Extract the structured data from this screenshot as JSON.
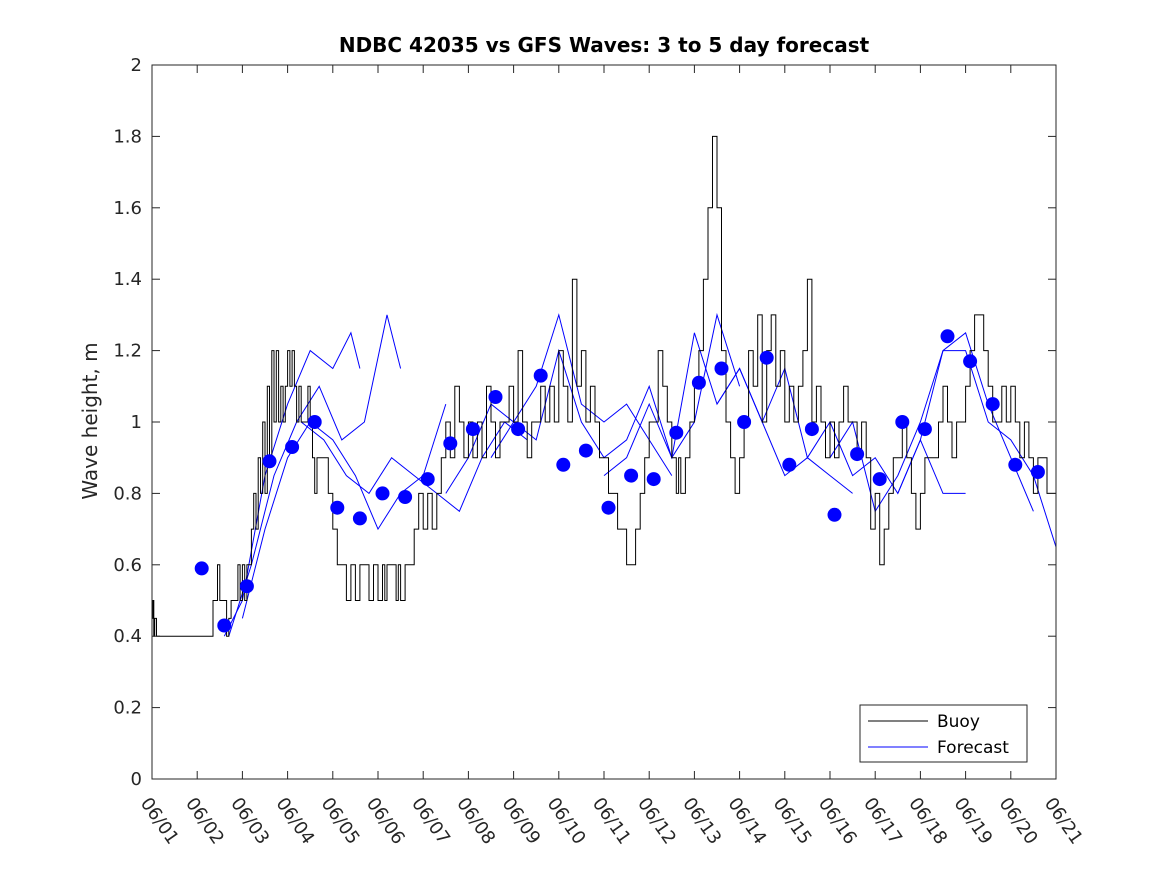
{
  "chart_data": {
    "type": "line",
    "title": "NDBC 42035 vs GFS Waves: 3 to 5 day forecast",
    "xlabel": "",
    "ylabel": "Wave height, m",
    "ylim": [
      0,
      2
    ],
    "xlim": [
      "06/01",
      "06/21"
    ],
    "x_ticks": [
      "06/01",
      "06/02",
      "06/03",
      "06/04",
      "06/05",
      "06/06",
      "06/07",
      "06/08",
      "06/09",
      "06/10",
      "06/11",
      "06/12",
      "06/13",
      "06/14",
      "06/15",
      "06/16",
      "06/17",
      "06/18",
      "06/19",
      "06/20",
      "06/21"
    ],
    "y_ticks": [
      "0",
      "0.2",
      "0.4",
      "0.6",
      "0.8",
      "1",
      "1.2",
      "1.4",
      "1.6",
      "1.8",
      "2"
    ],
    "grid": false,
    "legend": {
      "position": "bottom-right",
      "entries": [
        {
          "label": "Buoy",
          "color": "#000000"
        },
        {
          "label": "Forecast",
          "color": "#0000ff"
        }
      ]
    },
    "colors": {
      "buoy": "#000000",
      "forecast": "#0000ff",
      "marker": "#0000ff"
    },
    "series": [
      {
        "name": "Buoy",
        "color": "#000000",
        "x_days": [
          0,
          0.02,
          0.04,
          0.06,
          0.1,
          0.3,
          0.6,
          0.9,
          1.2,
          1.3,
          1.35,
          1.4,
          1.45,
          1.5,
          1.55,
          1.6,
          1.65,
          1.7,
          1.75,
          1.8,
          1.85,
          1.9,
          1.95,
          2.0,
          2.05,
          2.1,
          2.15,
          2.2,
          2.25,
          2.3,
          2.35,
          2.4,
          2.45,
          2.5,
          2.55,
          2.6,
          2.65,
          2.7,
          2.75,
          2.8,
          2.85,
          2.9,
          2.95,
          3.0,
          3.05,
          3.1,
          3.15,
          3.2,
          3.25,
          3.3,
          3.35,
          3.4,
          3.45,
          3.5,
          3.55,
          3.6,
          3.65,
          3.7,
          3.75,
          3.8,
          3.85,
          3.9,
          4.0,
          4.1,
          4.2,
          4.3,
          4.4,
          4.5,
          4.6,
          4.7,
          4.8,
          4.9,
          5.0,
          5.1,
          5.15,
          5.2,
          5.3,
          5.4,
          5.45,
          5.5,
          5.6,
          5.7,
          5.8,
          5.9,
          6.0,
          6.1,
          6.2,
          6.3,
          6.4,
          6.5,
          6.6,
          6.7,
          6.8,
          6.9,
          7.0,
          7.1,
          7.2,
          7.3,
          7.4,
          7.5,
          7.6,
          7.7,
          7.8,
          7.9,
          8.0,
          8.1,
          8.2,
          8.3,
          8.4,
          8.5,
          8.6,
          8.7,
          8.8,
          8.9,
          9.0,
          9.1,
          9.2,
          9.3,
          9.4,
          9.5,
          9.6,
          9.7,
          9.8,
          9.9,
          10.0,
          10.1,
          10.2,
          10.3,
          10.4,
          10.5,
          10.6,
          10.7,
          10.8,
          10.9,
          11.0,
          11.1,
          11.2,
          11.3,
          11.4,
          11.5,
          11.55,
          11.6,
          11.65,
          11.7,
          11.75,
          11.8,
          11.9,
          12.0,
          12.1,
          12.2,
          12.3,
          12.4,
          12.5,
          12.6,
          12.7,
          12.8,
          12.9,
          13.0,
          13.1,
          13.2,
          13.3,
          13.4,
          13.5,
          13.6,
          13.7,
          13.8,
          13.9,
          14.0,
          14.1,
          14.2,
          14.3,
          14.4,
          14.5,
          14.6,
          14.7,
          14.8,
          14.9,
          15.0,
          15.1,
          15.2,
          15.3,
          15.4,
          15.5,
          15.6,
          15.7,
          15.8,
          15.9,
          16.0,
          16.1,
          16.2,
          16.3,
          16.4,
          16.5,
          16.6,
          16.7,
          16.8,
          16.9,
          17.0,
          17.1,
          17.2,
          17.3,
          17.4,
          17.5,
          17.6,
          17.7,
          17.8,
          17.9,
          18.0,
          18.1,
          18.2,
          18.3,
          18.4,
          18.5,
          18.6,
          18.7,
          18.8,
          18.9,
          19.0,
          19.1,
          19.2,
          19.3,
          19.4,
          19.5,
          19.6,
          19.7,
          19.8,
          19.9,
          20.0
        ],
        "values": [
          0.45,
          0.5,
          0.4,
          0.45,
          0.4,
          0.4,
          0.4,
          0.4,
          0.4,
          0.4,
          0.5,
          0.5,
          0.6,
          0.5,
          0.5,
          0.5,
          0.4,
          0.45,
          0.5,
          0.5,
          0.5,
          0.6,
          0.5,
          0.6,
          0.5,
          0.6,
          0.6,
          0.7,
          0.8,
          0.7,
          0.9,
          0.8,
          1.0,
          0.8,
          1.1,
          0.9,
          1.2,
          1.0,
          1.2,
          1.0,
          1.1,
          1.0,
          1.1,
          1.2,
          1.1,
          1.2,
          1.1,
          1.0,
          1.1,
          1.0,
          1.0,
          1.0,
          1.1,
          1.0,
          0.9,
          0.8,
          0.9,
          0.9,
          0.9,
          0.9,
          0.9,
          0.8,
          0.7,
          0.6,
          0.6,
          0.5,
          0.6,
          0.5,
          0.6,
          0.6,
          0.5,
          0.6,
          0.5,
          0.6,
          0.5,
          0.6,
          0.6,
          0.5,
          0.6,
          0.5,
          0.6,
          0.6,
          0.7,
          0.8,
          0.7,
          0.8,
          0.7,
          0.8,
          0.9,
          1.0,
          0.9,
          1.1,
          1.0,
          0.9,
          1.0,
          0.9,
          1.0,
          0.9,
          1.1,
          1.0,
          0.9,
          1.0,
          1.0,
          1.1,
          1.0,
          1.2,
          1.0,
          0.9,
          1.0,
          1.0,
          1.1,
          1.0,
          1.1,
          1.0,
          1.2,
          1.1,
          1.0,
          1.4,
          1.1,
          1.2,
          1.0,
          1.1,
          1.0,
          0.9,
          0.9,
          0.8,
          0.8,
          0.7,
          0.7,
          0.6,
          0.6,
          0.7,
          0.8,
          0.9,
          1.0,
          1.0,
          1.2,
          1.1,
          1.0,
          0.9,
          0.9,
          0.8,
          0.9,
          0.8,
          0.8,
          0.9,
          1.0,
          1.1,
          1.2,
          1.4,
          1.6,
          1.8,
          1.6,
          1.2,
          1.0,
          0.9,
          0.8,
          0.9,
          1.0,
          1.2,
          1.1,
          1.3,
          1.0,
          1.2,
          1.3,
          1.1,
          1.2,
          1.0,
          1.1,
          1.0,
          1.1,
          1.2,
          1.4,
          1.0,
          1.1,
          1.0,
          0.9,
          1.0,
          0.9,
          1.0,
          1.1,
          1.0,
          1.0,
          0.9,
          1.0,
          0.9,
          0.7,
          0.8,
          0.6,
          0.7,
          0.8,
          0.9,
          0.9,
          1.0,
          0.9,
          0.8,
          0.7,
          0.8,
          0.9,
          0.9,
          0.9,
          1.0,
          1.1,
          1.0,
          0.9,
          1.0,
          1.0,
          1.1,
          1.2,
          1.3,
          1.3,
          1.2,
          1.1,
          1.0,
          1.0,
          1.1,
          1.0,
          1.1,
          1.0,
          0.9,
          1.0,
          0.9,
          0.8,
          0.9,
          0.9,
          0.8,
          0.8,
          0.8
        ]
      },
      {
        "name": "Forecast",
        "color": "#0000ff",
        "runs": [
          {
            "x_days": [
              1.6,
              2.0,
              2.5,
              3.0,
              3.5,
              4.0,
              4.4,
              4.6
            ],
            "values": [
              0.4,
              0.5,
              0.85,
              1.05,
              1.2,
              1.15,
              1.25,
              1.15
            ]
          },
          {
            "x_days": [
              1.7,
              2.2,
              2.7,
              3.2,
              3.7,
              4.2,
              4.7,
              5.2,
              5.5
            ],
            "values": [
              0.4,
              0.6,
              0.85,
              1.0,
              1.1,
              0.95,
              1.0,
              1.3,
              1.15
            ]
          },
          {
            "x_days": [
              2.0,
              2.5,
              3.0,
              3.5,
              4.0,
              4.5,
              5.0,
              5.5,
              6.0,
              6.5
            ],
            "values": [
              0.45,
              0.7,
              0.9,
              1.0,
              0.95,
              0.85,
              0.7,
              0.8,
              0.85,
              1.05
            ]
          },
          {
            "x_days": [
              3.3,
              3.8,
              4.3,
              4.8,
              5.3,
              5.8,
              6.3,
              6.8,
              7.3,
              7.8,
              8.3
            ],
            "values": [
              1.0,
              0.95,
              0.85,
              0.8,
              0.9,
              0.85,
              0.8,
              0.75,
              0.9,
              1.0,
              0.95
            ]
          },
          {
            "x_days": [
              6.5,
              7.0,
              7.5,
              8.0,
              8.5,
              9.0,
              9.5,
              10.0,
              10.5,
              11.0,
              11.5
            ],
            "values": [
              0.8,
              0.9,
              1.05,
              1.0,
              1.1,
              1.3,
              1.05,
              1.0,
              1.05,
              0.95,
              0.85
            ]
          },
          {
            "x_days": [
              7.5,
              8.0,
              8.5,
              9.0,
              9.5,
              10.0,
              10.5,
              11.0,
              11.5,
              12.0,
              12.5,
              13.0
            ],
            "values": [
              0.9,
              1.0,
              0.95,
              1.2,
              1.0,
              0.9,
              0.95,
              1.1,
              0.9,
              1.0,
              1.3,
              1.1
            ]
          },
          {
            "x_days": [
              10.0,
              10.5,
              11.0,
              11.5,
              12.0,
              12.5,
              13.0,
              13.5,
              14.0,
              14.5,
              15.0,
              15.5
            ],
            "values": [
              0.85,
              0.9,
              1.05,
              0.9,
              1.25,
              1.05,
              1.15,
              1.0,
              0.85,
              0.9,
              0.85,
              0.8
            ]
          },
          {
            "x_days": [
              12.5,
              13.0,
              13.5,
              14.0,
              14.5,
              15.0,
              15.5,
              16.0,
              16.5,
              17.0,
              17.5,
              18.0
            ],
            "values": [
              1.05,
              1.15,
              1.0,
              1.15,
              0.9,
              1.0,
              0.85,
              0.9,
              0.8,
              0.95,
              0.8,
              0.8
            ]
          },
          {
            "x_days": [
              15.0,
              15.5,
              16.0,
              16.5,
              17.0,
              17.5,
              18.0,
              18.5,
              19.0,
              19.5
            ],
            "values": [
              0.9,
              1.0,
              0.75,
              0.85,
              1.0,
              1.2,
              1.25,
              1.05,
              0.9,
              0.75
            ]
          },
          {
            "x_days": [
              16.5,
              17.0,
              17.5,
              18.0,
              18.5,
              19.0,
              19.5,
              20.0
            ],
            "values": [
              0.8,
              0.95,
              1.2,
              1.2,
              1.0,
              0.95,
              0.85,
              0.65
            ]
          }
        ]
      }
    ],
    "markers": {
      "name": "Forecast",
      "x_days": [
        1.1,
        1.6,
        2.1,
        2.6,
        3.1,
        3.6,
        4.1,
        4.6,
        5.1,
        5.6,
        6.1,
        6.6,
        7.1,
        7.6,
        8.1,
        8.6,
        9.1,
        9.6,
        10.1,
        10.6,
        11.1,
        11.6,
        12.1,
        12.6,
        13.1,
        13.6,
        14.1,
        14.6,
        15.1,
        15.6,
        16.1,
        16.6,
        17.1,
        17.6,
        18.1,
        18.6,
        19.1,
        19.6
      ],
      "values": [
        0.59,
        0.43,
        0.54,
        0.89,
        0.93,
        1.0,
        0.76,
        0.73,
        0.8,
        0.79,
        0.84,
        0.94,
        0.98,
        1.07,
        0.98,
        1.13,
        0.88,
        0.92,
        0.76,
        0.85,
        0.84,
        0.97,
        1.11,
        1.15,
        1.0,
        1.18,
        0.88,
        0.98,
        0.74,
        0.91,
        0.84,
        1.0,
        0.98,
        1.24,
        1.17,
        1.05,
        0.88,
        0.86
      ]
    }
  }
}
